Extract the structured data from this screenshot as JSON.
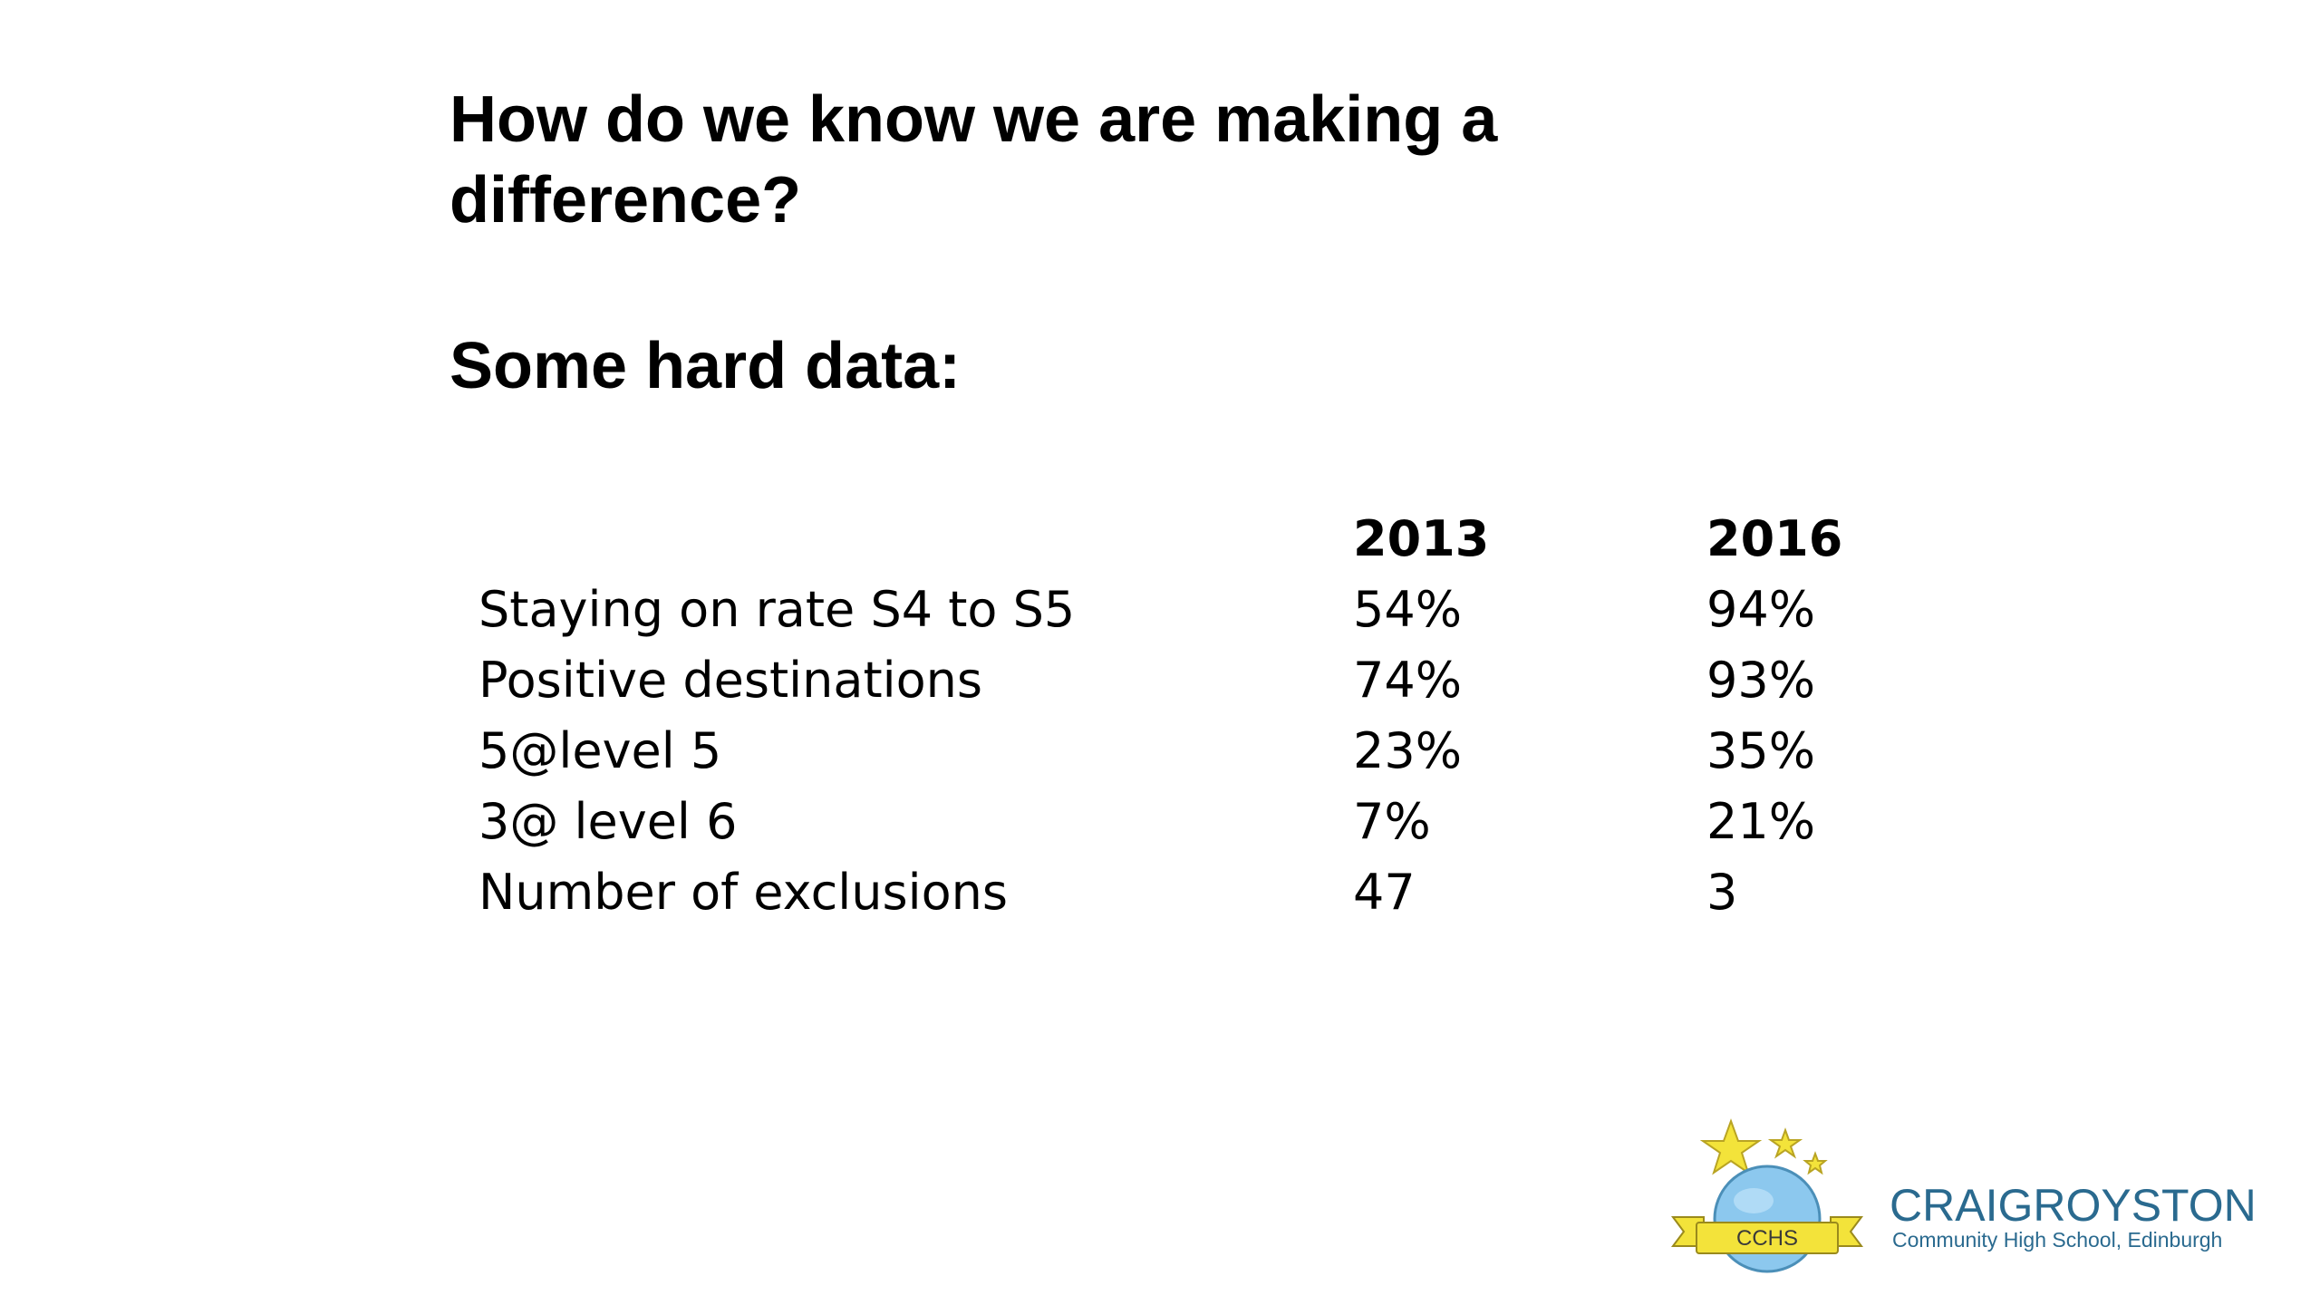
{
  "slide": {
    "title": "How do we know we are making a difference?",
    "subtitle": "Some hard data:"
  },
  "table": {
    "headers": [
      "",
      "2013",
      "2016"
    ],
    "rows": [
      [
        "Staying on rate S4 to S5",
        "54%",
        "94%"
      ],
      [
        "Positive destinations",
        "74%",
        "93%"
      ],
      [
        "5@level 5",
        "23%",
        "35%"
      ],
      [
        "3@ level 6",
        "7%",
        "21%"
      ],
      [
        "Number of exclusions",
        "47",
        "3"
      ]
    ]
  },
  "logo": {
    "badge_text": "CCHS",
    "name": "CRAIGROYSTON",
    "tagline": "Community High School, Edinburgh",
    "icon": "school-crest-icon",
    "colors": {
      "text": "#2a6a8f",
      "globe": "#8cc8ee",
      "ribbon": "#f3e33a",
      "star": "#f3e33a"
    }
  }
}
